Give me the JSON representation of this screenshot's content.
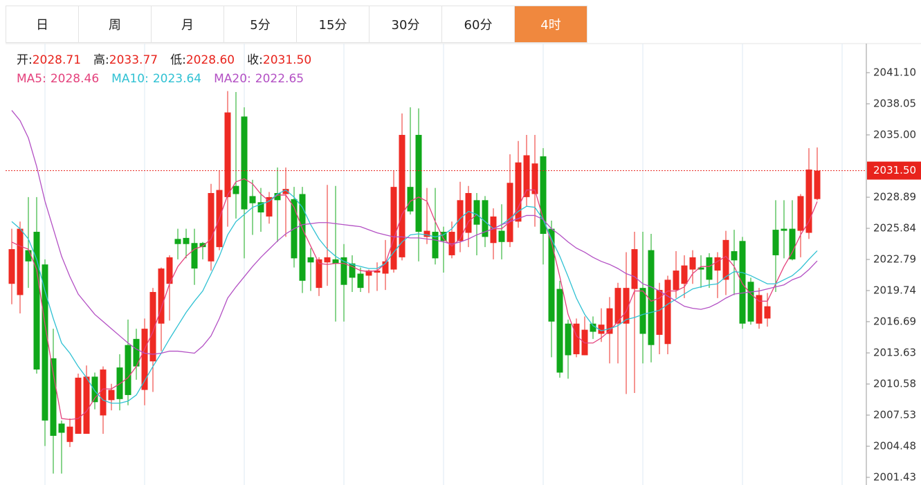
{
  "tabs": [
    "日",
    "周",
    "月",
    "5分",
    "15分",
    "30分",
    "60分",
    "4时"
  ],
  "active_tab": 7,
  "chart_data": {
    "type": "candlestick",
    "header": {
      "labels": [
        "开:",
        "高:",
        "低:",
        "收:"
      ],
      "values": [
        2028.71,
        2033.77,
        2028.6,
        2031.5
      ],
      "value_labels": [
        "2028.71",
        "2033.77",
        "2028.60",
        "2031.50"
      ]
    },
    "last_price": 2031.5,
    "last_price_label": "2031.50",
    "last_price_color": "#e8231c",
    "up_color": "#ee2a23",
    "down_color": "#10a81a",
    "ylim": [
      2000.68,
      2043.95
    ],
    "yticks": [
      {
        "value": 2041.1,
        "label": "2041.10"
      },
      2038.05,
      {
        "value": 2035,
        "label": "2035.00"
      },
      2028.89,
      2025.84,
      2022.79,
      2019.74,
      2016.69,
      2013.63,
      2010.58,
      2007.53,
      2004.48,
      2001.43
    ],
    "open": [
      2020.4,
      2019.3,
      2023.7,
      2025.5,
      2022.3,
      2013.1,
      2006.7,
      2004.9,
      2005.7,
      2005.7,
      2011.3,
      2007.5,
      2009.0,
      2012.2,
      2014.4,
      2015.0,
      2010.0,
      2012.8,
      2016.5,
      2020.4,
      2024.8,
      2024.9,
      2024.4,
      2024.4,
      2022.6,
      2024.0,
      2028.9,
      2030.0,
      2036.8,
      2029.0,
      2028.4,
      2027.0,
      2029.3,
      2029.2,
      2028.7,
      2029.2,
      2023.0,
      2020.0,
      2022.5,
      2022.8,
      2023.0,
      2022.4,
      2021.4,
      2021.2,
      2021.5,
      2021.4,
      2021.8,
      2023.0,
      2029.9,
      2035.0,
      2025.0,
      2025.5,
      2025.5,
      2023.2,
      2024.6,
      2025.4,
      2028.6,
      2028.6,
      2024.4,
      2025.6,
      2024.5,
      2026.5,
      2028.9,
      2029.2,
      2032.9,
      2025.8,
      2019.9,
      2016.5,
      2013.5,
      2013.4,
      2016.5,
      2015.5,
      2015.5,
      2016.5,
      2016.5,
      2019.9,
      2020.0,
      2023.7,
      2015.4,
      2014.5,
      2019.8,
      2020.4,
      2021.8,
      2022.0,
      2023.0,
      2021.7,
      2020.8,
      2023.6,
      2024.6,
      2020.6,
      2016.5,
      2017.0,
      2025.7,
      2025.8,
      2025.8,
      2025.6,
      2025.4,
      2028.71
    ],
    "high": [
      2025.8,
      2026.5,
      2028.9,
      2028.9,
      2022.8,
      2016.0,
      2007.0,
      2007.2,
      2011.6,
      2012.4,
      2011.7,
      2012.3,
      2010.6,
      2013.5,
      2016.9,
      2016.0,
      2017.0,
      2020.0,
      2022.0,
      2023.2,
      2025.8,
      2025.8,
      2025.8,
      2024.5,
      2030.2,
      2031.5,
      2039.3,
      2039.2,
      2037.7,
      2030.6,
      2029.8,
      2029.4,
      2031.8,
      2031.8,
      2029.9,
      2029.9,
      2023.9,
      2023.0,
      2030.1,
      2030.0,
      2024.3,
      2023.2,
      2022.0,
      2021.8,
      2022.5,
      2024.7,
      2031.5,
      2037.1,
      2037.7,
      2037.6,
      2029.8,
      2029.8,
      2026.0,
      2026.5,
      2030.4,
      2030.0,
      2029.3,
      2029.0,
      2027.8,
      2028.2,
      2033.1,
      2034.4,
      2035.0,
      2035.0,
      2033.7,
      2026.6,
      2020.7,
      2016.9,
      2017.0,
      2017.2,
      2017.2,
      2018.0,
      2019.1,
      2020.5,
      2023.5,
      2025.5,
      2025.5,
      2025.3,
      2020.5,
      2021.2,
      2023.6,
      2023.2,
      2023.7,
      2023.2,
      2023.4,
      2023.5,
      2025.6,
      2025.7,
      2025.0,
      2021.0,
      2020.0,
      2019.5,
      2028.6,
      2028.6,
      2028.6,
      2029.2,
      2033.7,
      2033.77
    ],
    "low": [
      2018.4,
      2017.5,
      2020.0,
      2011.6,
      2004.5,
      2001.8,
      2001.8,
      2004.4,
      2005.7,
      2005.7,
      2008.1,
      2005.7,
      2008.0,
      2008.0,
      2008.5,
      2011.0,
      2008.5,
      2009.8,
      2013.8,
      2016.8,
      2022.8,
      2022.9,
      2020.3,
      2022.8,
      2021.7,
      2023.7,
      2026.0,
      2026.8,
      2022.9,
      2025.2,
      2025.5,
      2026.3,
      2024.5,
      2025.0,
      2022.0,
      2019.5,
      2019.7,
      2019.2,
      2020.2,
      2016.7,
      2016.7,
      2019.6,
      2019.6,
      2019.5,
      2019.7,
      2019.8,
      2021.5,
      2022.7,
      2027.2,
      2022.6,
      2024.3,
      2022.3,
      2021.5,
      2022.9,
      2023.5,
      2024.0,
      2023.2,
      2024.0,
      2022.8,
      2022.8,
      2024.0,
      2025.9,
      2028.0,
      2026.0,
      2022.3,
      2013.2,
      2011.2,
      2011.1,
      2013.2,
      2013.4,
      2015.0,
      2014.7,
      2012.6,
      2012.6,
      2009.6,
      2009.7,
      2012.6,
      2012.7,
      2013.5,
      2013.5,
      2019.0,
      2019.0,
      2020.4,
      2020.0,
      2020.0,
      2019.0,
      2019.3,
      2019.3,
      2016.0,
      2016.4,
      2016.0,
      2016.2,
      2019.6,
      2022.9,
      2022.7,
      2023.0,
      2024.8,
      2028.6
    ],
    "close": [
      2023.8,
      2025.8,
      2022.6,
      2012.0,
      2007.0,
      2005.5,
      2005.8,
      2006.4,
      2011.2,
      2011.3,
      2008.8,
      2012.0,
      2010.0,
      2009.1,
      2009.5,
      2012.3,
      2016.0,
      2019.6,
      2021.9,
      2023.0,
      2024.3,
      2024.3,
      2021.9,
      2024.0,
      2029.3,
      2029.6,
      2037.2,
      2029.2,
      2027.7,
      2028.3,
      2027.4,
      2028.9,
      2028.6,
      2029.7,
      2022.9,
      2020.7,
      2022.5,
      2022.8,
      2023.0,
      2022.4,
      2020.3,
      2021.0,
      2020.0,
      2021.7,
      2021.7,
      2022.6,
      2029.9,
      2035.0,
      2027.5,
      2025.5,
      2025.6,
      2022.9,
      2024.6,
      2025.5,
      2028.6,
      2029.3,
      2026.2,
      2025.0,
      2027.0,
      2024.5,
      2030.3,
      2032.3,
      2033.0,
      2032.2,
      2025.3,
      2016.7,
      2011.7,
      2013.4,
      2016.5,
      2015.9,
      2015.7,
      2016.4,
      2018.0,
      2020.0,
      2020.0,
      2023.8,
      2015.5,
      2014.4,
      2019.8,
      2020.8,
      2021.7,
      2022.2,
      2023.0,
      2021.8,
      2020.8,
      2023.0,
      2024.7,
      2022.7,
      2016.5,
      2016.7,
      2019.3,
      2018.2,
      2023.2,
      2025.6,
      2022.8,
      2029.0,
      2031.6,
      2031.5
    ],
    "series": [
      {
        "name": "MA5:",
        "color": "#e4417c",
        "values": [
          2024.5,
          2024.1,
          2023.8,
          2021.8,
          2016.4,
          2011.6,
          2007.2,
          2007.1,
          2007.2,
          2007.9,
          2009.2,
          2010.1,
          2010.1,
          2010.6,
          2011.2,
          2012.3,
          2014.0,
          2015.7,
          2018.0,
          2020.4,
          2022.1,
          2023.1,
          2023.8,
          2024.1,
          2024.8,
          2026.8,
          2029.1,
          2030.4,
          2030.7,
          2030.2,
          2029.2,
          2028.5,
          2029.1,
          2029.1,
          2027.9,
          2025.8,
          2024.1,
          2022.4,
          2022.3,
          2022.4,
          2022.4,
          2022.1,
          2021.7,
          2021.6,
          2021.7,
          2022.4,
          2024.8,
          2027.2,
          2028.5,
          2028.9,
          2028.5,
          2026.5,
          2024.8,
          2024.1,
          2024.8,
          2026.5,
          2027.2,
          2026.5,
          2025.8,
          2025.8,
          2026.5,
          2027.9,
          2029.6,
          2029.6,
          2026.8,
          2024.5,
          2021.1,
          2017.4,
          2015.3,
          2014.6,
          2014.6,
          2015.1,
          2015.8,
          2016.7,
          2017.7,
          2019.7,
          2019.7,
          2018.7,
          2019.0,
          2019.7,
          2019.7,
          2020.1,
          2021.4,
          2022.1,
          2022.1,
          2022.6,
          2023.1,
          2022.1,
          2020.4,
          2019.4,
          2018.7,
          2018.7,
          2020.4,
          2022.1,
          2023.5,
          2025.2,
          2026.5,
          2028.46
        ]
      },
      {
        "name": "MA10:",
        "color": "#2fc1d3",
        "values": [
          2026.5,
          2025.8,
          2024.8,
          2022.8,
          2019.7,
          2017.0,
          2014.6,
          2013.6,
          2012.3,
          2011.2,
          2009.9,
          2009.0,
          2008.7,
          2008.7,
          2008.9,
          2009.5,
          2010.9,
          2012.3,
          2013.6,
          2015.0,
          2016.3,
          2017.6,
          2018.7,
          2019.7,
          2021.4,
          2023.1,
          2025.2,
          2026.5,
          2027.2,
          2027.9,
          2028.2,
          2028.5,
          2029.2,
          2029.6,
          2028.9,
          2027.9,
          2026.2,
          2024.8,
          2023.8,
          2023.1,
          2022.6,
          2022.3,
          2022.1,
          2021.9,
          2021.9,
          2022.4,
          2023.5,
          2024.5,
          2025.2,
          2025.3,
          2025.2,
          2025.0,
          2025.2,
          2025.8,
          2026.8,
          2027.5,
          2027.2,
          2026.5,
          2025.8,
          2026.2,
          2026.8,
          2027.5,
          2028.0,
          2027.9,
          2026.7,
          2024.8,
          2023.1,
          2021.1,
          2019.0,
          2017.4,
          2016.3,
          2015.8,
          2016.0,
          2016.3,
          2016.9,
          2017.1,
          2017.4,
          2017.6,
          2017.8,
          2018.4,
          2018.9,
          2019.4,
          2019.9,
          2020.1,
          2020.3,
          2020.4,
          2021.1,
          2021.6,
          2021.5,
          2021.2,
          2020.8,
          2020.4,
          2020.4,
          2020.8,
          2021.2,
          2021.9,
          2022.8,
          2023.64
        ]
      },
      {
        "name": "MA20:",
        "color": "#b350c4",
        "values": [
          2037.4,
          2036.4,
          2034.7,
          2031.9,
          2028.5,
          2025.8,
          2023.1,
          2021.1,
          2019.4,
          2018.4,
          2017.4,
          2016.7,
          2016.0,
          2015.3,
          2014.6,
          2014.0,
          2013.6,
          2013.5,
          2013.6,
          2013.8,
          2013.8,
          2013.7,
          2013.6,
          2014.3,
          2015.3,
          2017.0,
          2019.0,
          2020.1,
          2021.1,
          2022.1,
          2023.0,
          2023.8,
          2024.6,
          2025.3,
          2025.8,
          2026.2,
          2026.3,
          2026.4,
          2026.4,
          2026.3,
          2026.2,
          2026.1,
          2026.0,
          2025.7,
          2025.4,
          2025.2,
          2025.0,
          2025.0,
          2024.9,
          2024.9,
          2024.8,
          2024.7,
          2024.5,
          2024.3,
          2024.5,
          2024.8,
          2025.2,
          2025.5,
          2025.8,
          2026.2,
          2026.5,
          2026.8,
          2027.1,
          2027.1,
          2026.7,
          2025.8,
          2025.2,
          2024.5,
          2023.9,
          2023.5,
          2023.0,
          2022.6,
          2022.3,
          2021.9,
          2021.4,
          2021.1,
          2020.4,
          2020.1,
          2019.7,
          2019.2,
          2018.7,
          2018.2,
          2018.0,
          2017.9,
          2018.1,
          2018.5,
          2019.0,
          2019.4,
          2019.5,
          2019.6,
          2019.7,
          2019.9,
          2020.1,
          2020.3,
          2020.8,
          2021.1,
          2021.8,
          2022.65
        ]
      }
    ]
  }
}
